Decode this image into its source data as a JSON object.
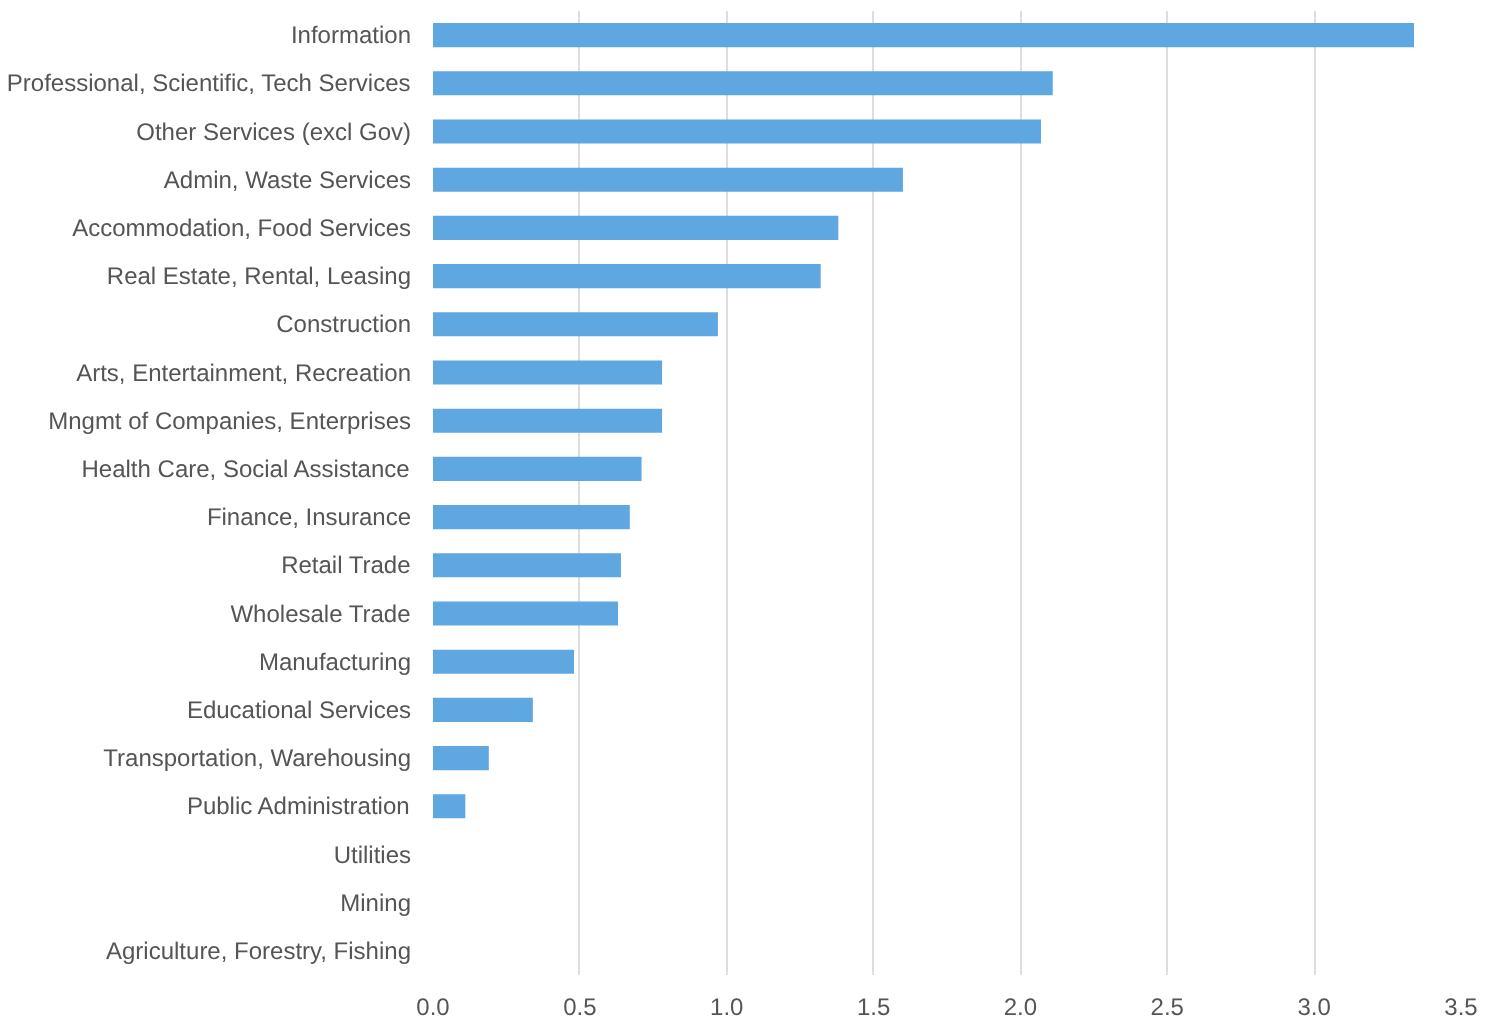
{
  "chart_data": {
    "type": "bar",
    "orientation": "horizontal",
    "categories": [
      "Information",
      "Professional, Scientific, Tech Services",
      "Other Services (excl Gov)",
      "Admin, Waste Services",
      "Accommodation, Food Services",
      "Real Estate, Rental, Leasing",
      "Construction",
      "Arts, Entertainment, Recreation",
      "Mngmt of Companies, Enterprises",
      "Health Care, Social Assistance",
      "Finance, Insurance",
      "Retail Trade",
      "Wholesale Trade",
      "Manufacturing",
      "Educational Services",
      "Transportation, Warehousing",
      "Public Administration",
      "Utilities",
      "Mining",
      "Agriculture, Forestry, Fishing"
    ],
    "values": [
      3.34,
      2.11,
      2.07,
      1.6,
      1.38,
      1.32,
      0.97,
      0.78,
      0.78,
      0.71,
      0.67,
      0.64,
      0.63,
      0.48,
      0.34,
      0.19,
      0.11,
      0,
      0,
      0
    ],
    "color": "#5fa7e0",
    "xlim": [
      0,
      3.5
    ],
    "xticks": [
      {
        "value": 0,
        "label": "0.0"
      },
      {
        "value": 0.5,
        "label": "0.5"
      },
      {
        "value": 1,
        "label": "1.0"
      },
      {
        "value": 1.5,
        "label": "1.5"
      },
      {
        "value": 2,
        "label": "2.0"
      },
      {
        "value": 2.5,
        "label": "2.5"
      },
      {
        "value": 3,
        "label": "3.0"
      },
      {
        "value": 3.5,
        "label": "3.5"
      }
    ],
    "grid": "x"
  }
}
